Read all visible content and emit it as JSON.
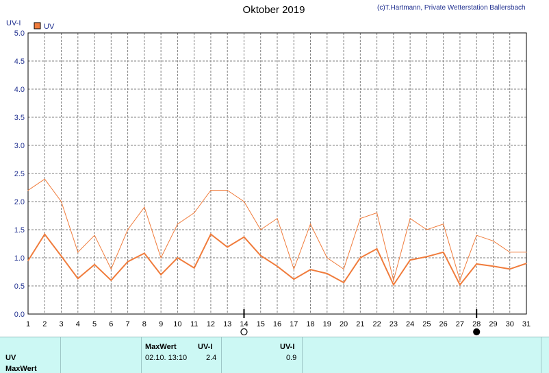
{
  "header": {
    "title": "Oktober 2019",
    "copyright": "(c)T.Hartmann, Private Wetterstation Ballersbach"
  },
  "colors": {
    "series": "#f07c3c",
    "grid": "#7f7f7f",
    "axis_text": "#1f2f8f",
    "panel_bg": "#ccf8f4"
  },
  "chart_data": {
    "type": "line",
    "ylabel": "UV-I",
    "legend": {
      "label": "UV",
      "placement": "top-left"
    },
    "ylim": [
      0,
      5
    ],
    "y_ticks": [
      "0.0",
      "0.5",
      "1.0",
      "1.5",
      "2.0",
      "2.5",
      "3.0",
      "3.5",
      "4.0",
      "4.5",
      "5.0"
    ],
    "x_ticks": [
      "1",
      "2",
      "3",
      "4",
      "5",
      "6",
      "7",
      "8",
      "9",
      "10",
      "11",
      "12",
      "13",
      "14",
      "15",
      "16",
      "17",
      "18",
      "19",
      "20",
      "21",
      "22",
      "23",
      "24",
      "25",
      "26",
      "27",
      "28",
      "29",
      "30",
      "31"
    ],
    "grid": true,
    "series": [
      {
        "role": "max",
        "values": [
          2.2,
          2.4,
          2.0,
          1.1,
          1.4,
          0.8,
          1.5,
          1.9,
          1.0,
          1.6,
          1.8,
          2.2,
          2.2,
          2.0,
          1.5,
          1.7,
          0.8,
          1.6,
          1.0,
          0.8,
          1.7,
          1.8,
          0.6,
          1.7,
          1.5,
          1.6,
          0.6,
          1.4,
          1.3,
          1.1,
          1.1
        ]
      },
      {
        "role": "mean",
        "values": [
          0.95,
          1.42,
          1.03,
          0.63,
          0.88,
          0.6,
          0.93,
          1.08,
          0.7,
          1.0,
          0.82,
          1.42,
          1.19,
          1.37,
          1.04,
          0.85,
          0.62,
          0.79,
          0.72,
          0.56,
          1.0,
          1.16,
          0.52,
          0.96,
          1.02,
          1.1,
          0.52,
          0.89,
          0.85,
          0.8,
          0.9
        ]
      }
    ],
    "markers": [
      {
        "day": "14",
        "symbol": "full-moon"
      },
      {
        "day": "28",
        "symbol": "new-moon"
      }
    ]
  },
  "panel": {
    "row1_label": "UV",
    "row2_label": "MaxWert",
    "maxwert_header": "MaxWert",
    "unit_header": "UV-I",
    "max_datetime": "02.10.  13:10",
    "max_value": "2.4",
    "unit_header2": "UV-I",
    "mean_value": "0.9"
  }
}
